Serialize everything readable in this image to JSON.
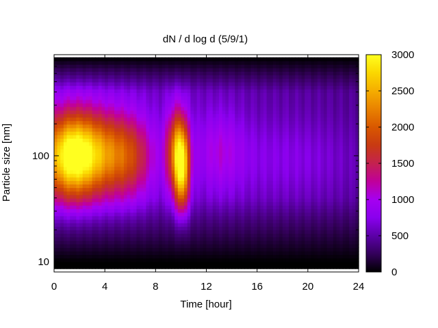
{
  "chart_data": {
    "type": "heatmap",
    "title": "dN / d log d (5/9/1)",
    "xlabel": "Time [hour]",
    "ylabel": "Particle size [nm]",
    "xlim": [
      0,
      24
    ],
    "x_ticks": [
      0,
      4,
      8,
      12,
      16,
      20,
      24
    ],
    "x_tick_labels": [
      "0",
      "4",
      "8",
      "12",
      "16",
      "20",
      "24"
    ],
    "ylim": [
      8,
      900
    ],
    "y_scale": "log",
    "y_ticks": [
      10,
      100
    ],
    "y_tick_labels": [
      "10",
      "100"
    ],
    "colorbar": {
      "range": [
        0,
        3000
      ],
      "ticks": [
        0,
        500,
        1000,
        1500,
        2000,
        2500,
        3000
      ],
      "tick_labels": [
        "0",
        "500",
        "1000",
        "1500",
        "2000",
        "2500",
        "3000"
      ],
      "palette": [
        "#000000",
        "#33005a",
        "#5c00a8",
        "#8a00ee",
        "#a600f0",
        "#c0009a",
        "#c4224f",
        "#c83a12",
        "#d95800",
        "#e98200",
        "#f5ad00",
        "#fbd800",
        "#ffff20"
      ]
    },
    "grid": false,
    "legend": "none",
    "events": [
      {
        "time": 1.2,
        "size": 100,
        "peak": 2900,
        "width_h": 1.5
      },
      {
        "time": 3.5,
        "size": 105,
        "peak": 1850,
        "width_h": 1.6
      },
      {
        "time": 6.0,
        "size": 100,
        "peak": 1650,
        "width_h": 1.4
      },
      {
        "time": 9.7,
        "size": 110,
        "peak": 2300,
        "width_h": 0.6
      },
      {
        "time": 10.1,
        "size": 70,
        "peak": 2200,
        "width_h": 0.4
      },
      {
        "time": 13.0,
        "size": 110,
        "peak": 1100,
        "width_h": 1.4
      },
      {
        "time": 17.0,
        "size": 95,
        "peak": 850,
        "width_h": 3.0
      },
      {
        "time": 21.5,
        "size": 90,
        "peak": 800,
        "width_h": 3.0
      }
    ],
    "background_level": 650
  }
}
